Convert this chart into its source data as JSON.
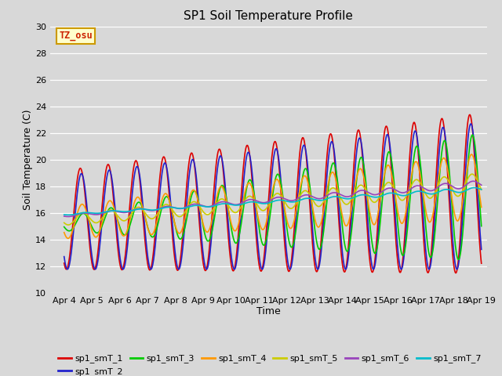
{
  "title": "SP1 Soil Temperature Profile",
  "xlabel": "Time",
  "ylabel": "Soil Temperature (C)",
  "ylim": [
    10,
    30
  ],
  "xlim_days": [
    3.5,
    19.2
  ],
  "annotation": "TZ_osu",
  "annotation_color": "#cc2200",
  "annotation_bg": "#ffffcc",
  "annotation_border": "#cc9900",
  "bg_color": "#d8d8d8",
  "plot_bg": "#d8d8d8",
  "grid_color": "#ffffff",
  "series_colors": [
    "#dd0000",
    "#2222cc",
    "#00cc00",
    "#ff9900",
    "#cccc00",
    "#9944bb",
    "#00bbcc"
  ],
  "series_labels": [
    "sp1_smT_1",
    "sp1_smT_2",
    "sp1_smT_3",
    "sp1_smT_4",
    "sp1_smT_5",
    "sp1_smT_6",
    "sp1_smT_7"
  ],
  "xtick_labels": [
    "Apr 4",
    "Apr 5",
    "Apr 6",
    "Apr 7",
    "Apr 8",
    "Apr 9",
    "Apr 10",
    "Apr 11",
    "Apr 12",
    "Apr 13",
    "Apr 14",
    "Apr 15",
    "Apr 16",
    "Apr 17",
    "Apr 18",
    "Apr 19"
  ],
  "xtick_positions": [
    4,
    5,
    6,
    7,
    8,
    9,
    10,
    11,
    12,
    13,
    14,
    15,
    16,
    17,
    18,
    19
  ],
  "ytick_labels": [
    "10",
    "12",
    "14",
    "16",
    "18",
    "20",
    "22",
    "24",
    "26",
    "28",
    "30"
  ],
  "ytick_positions": [
    10,
    12,
    14,
    16,
    18,
    20,
    22,
    24,
    26,
    28,
    30
  ]
}
